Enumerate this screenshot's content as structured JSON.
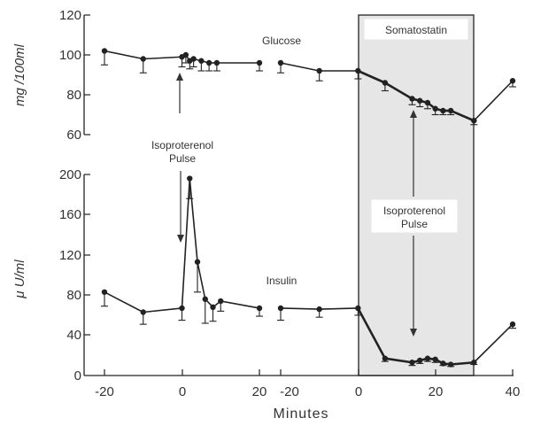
{
  "chart_data": [
    {
      "type": "line",
      "name_label": "Glucose",
      "ylabel": "mg /100ml",
      "ylim": [
        60,
        120
      ],
      "yticks": [
        60,
        80,
        100,
        120
      ],
      "segments": [
        {
          "xlim": [
            -20,
            20
          ],
          "x": [
            -20,
            -10,
            0,
            1,
            2,
            3,
            5,
            7,
            9,
            20
          ],
          "y": [
            102,
            98,
            99,
            100,
            97,
            98,
            97,
            96,
            96,
            96
          ],
          "err": [
            7,
            7,
            5,
            4,
            4,
            4,
            5,
            4,
            4,
            4
          ]
        },
        {
          "xlim": [
            -20,
            40
          ],
          "x": [
            -20,
            -10,
            0,
            7,
            14,
            16,
            18,
            20,
            22,
            24,
            30,
            40
          ],
          "y": [
            96,
            92,
            92,
            86,
            78,
            77,
            76,
            73,
            72,
            72,
            67,
            87
          ],
          "err": [
            5,
            5,
            4,
            4,
            3,
            3,
            3,
            3,
            2,
            2,
            2,
            3
          ]
        }
      ]
    },
    {
      "type": "line",
      "name_label": "Insulin",
      "ylabel": "μ U/ml",
      "ylim": [
        0,
        200
      ],
      "yticks": [
        0,
        40,
        80,
        120,
        160,
        200
      ],
      "segments": [
        {
          "xlim": [
            -20,
            20
          ],
          "x": [
            -20,
            -10,
            0,
            2,
            4,
            6,
            8,
            10,
            20
          ],
          "y": [
            83,
            63,
            67,
            196,
            113,
            76,
            68,
            74,
            67
          ],
          "err": [
            14,
            12,
            12,
            20,
            30,
            24,
            14,
            10,
            8
          ]
        },
        {
          "xlim": [
            -20,
            40
          ],
          "x": [
            -20,
            -10,
            0,
            7,
            14,
            16,
            18,
            20,
            22,
            24,
            30,
            40
          ],
          "y": [
            67,
            66,
            67,
            17,
            13,
            15,
            17,
            16,
            12,
            11,
            13,
            51
          ],
          "err": [
            12,
            8,
            7,
            3,
            3,
            3,
            3,
            3,
            2,
            2,
            2,
            4
          ]
        }
      ]
    }
  ],
  "xlabel": "Minutes",
  "xticks_left": [
    -20,
    0,
    20
  ],
  "xticks_right": [
    -20,
    0,
    20,
    40
  ],
  "tick_text": {
    "l_m20": "-20",
    "l_0": "0",
    "l_20": "20",
    "r_m20": "-20",
    "r_0": "0",
    "r_20": "20",
    "r_40": "40",
    "g60": "60",
    "g80": "80",
    "g100": "100",
    "g120": "120",
    "i0": "0",
    "i40": "40",
    "i80": "80",
    "i120": "120",
    "i160": "160",
    "i200": "200"
  },
  "annotations": {
    "somatostatin": "Somatostatin",
    "glucose": "Glucose",
    "insulin": "Insulin",
    "iso1_line1": "Isoproterenol",
    "iso1_line2": "Pulse",
    "iso2_line1": "Isoproterenol",
    "iso2_line2": "Pulse"
  },
  "shaded_interval": [
    0,
    30
  ]
}
